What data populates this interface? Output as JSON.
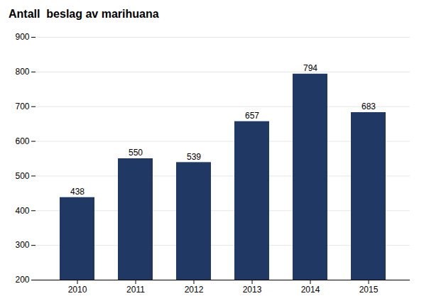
{
  "chart_data": {
    "type": "bar",
    "title": "Antall  beslag av marihuana",
    "categories": [
      "2010",
      "2011",
      "2012",
      "2013",
      "2014",
      "2015"
    ],
    "values": [
      438,
      550,
      539,
      657,
      794,
      683
    ],
    "color": "#1F3864",
    "ylim": [
      200,
      900
    ],
    "yticks": [
      200,
      300,
      400,
      500,
      600,
      700,
      800,
      900
    ],
    "grid": true,
    "data_labels": true
  }
}
